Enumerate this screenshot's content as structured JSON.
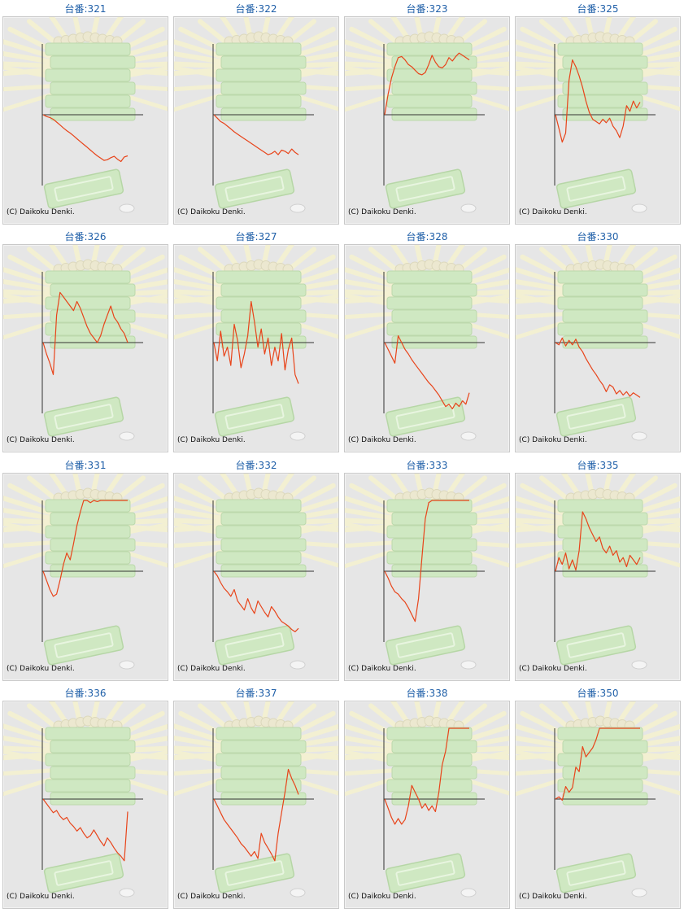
{
  "page": {
    "title_prefix": "台番:",
    "credit": "(C) Daikoku Denki."
  },
  "colors": {
    "title": "#1f5fa8",
    "panel_bg": "#e6e6e6",
    "panel_border": "#c9c9c9",
    "line": "#e8441a",
    "axis": "#333333",
    "watermark_green": "#cfe8c2",
    "watermark_rays": "#f3f0d2"
  },
  "charts": [
    {
      "title": "台番:321",
      "chart_data": {
        "type": "line",
        "x": [
          0,
          4,
          8,
          12,
          16,
          20,
          24,
          28,
          32,
          36,
          40,
          44,
          48,
          52,
          56,
          60,
          64,
          68,
          72,
          76,
          80,
          84,
          88,
          92,
          96,
          100
        ],
        "y": [
          0,
          -0.08,
          -0.12,
          -0.2,
          -0.32,
          -0.45,
          -0.58,
          -0.7,
          -0.8,
          -0.92,
          -1.05,
          -1.18,
          -1.3,
          -1.42,
          -1.55,
          -1.68,
          -1.8,
          -1.9,
          -2,
          -1.97,
          -1.88,
          -1.82,
          -1.95,
          -2.05,
          -1.85,
          -1.8
        ]
      }
    },
    {
      "title": "台番:322",
      "chart_data": {
        "type": "line",
        "x": [
          0,
          4,
          8,
          12,
          16,
          20,
          24,
          28,
          32,
          36,
          40,
          44,
          48,
          52,
          56,
          60,
          64,
          68,
          72,
          76,
          80,
          84,
          88,
          92,
          96,
          100
        ],
        "y": [
          0,
          -0.15,
          -0.3,
          -0.38,
          -0.5,
          -0.62,
          -0.75,
          -0.85,
          -0.95,
          -1.05,
          -1.15,
          -1.25,
          -1.35,
          -1.45,
          -1.55,
          -1.65,
          -1.75,
          -1.7,
          -1.6,
          -1.75,
          -1.55,
          -1.6,
          -1.7,
          -1.5,
          -1.65,
          -1.75
        ]
      }
    },
    {
      "title": "台番:323",
      "chart_data": {
        "type": "line",
        "x": [
          0,
          4,
          8,
          12,
          16,
          20,
          24,
          28,
          32,
          36,
          40,
          44,
          48,
          52,
          56,
          60,
          64,
          68,
          72,
          76,
          80,
          84,
          88,
          92,
          96,
          100
        ],
        "y": [
          0,
          0.9,
          1.6,
          2.1,
          2.5,
          2.55,
          2.4,
          2.2,
          2.1,
          1.95,
          1.8,
          1.75,
          1.85,
          2.2,
          2.6,
          2.3,
          2.1,
          2.05,
          2.2,
          2.5,
          2.35,
          2.55,
          2.7,
          2.6,
          2.5,
          2.4
        ]
      }
    },
    {
      "title": "台番:325",
      "chart_data": {
        "type": "line",
        "x": [
          0,
          4,
          8,
          12,
          16,
          20,
          24,
          28,
          32,
          36,
          40,
          44,
          48,
          52,
          56,
          60,
          64,
          68,
          72,
          76,
          80,
          84,
          88,
          92,
          96,
          100
        ],
        "y": [
          0,
          -0.6,
          -1.2,
          -0.8,
          1.5,
          2.4,
          2.1,
          1.7,
          1.2,
          0.6,
          0.1,
          -0.2,
          -0.3,
          -0.4,
          -0.2,
          -0.35,
          -0.15,
          -0.5,
          -0.7,
          -1,
          -0.5,
          0.4,
          0.15,
          0.6,
          0.3,
          0.55
        ]
      }
    },
    {
      "title": "台番:326",
      "chart_data": {
        "type": "line",
        "x": [
          0,
          4,
          8,
          12,
          16,
          20,
          24,
          28,
          32,
          36,
          40,
          44,
          48,
          52,
          56,
          60,
          64,
          68,
          72,
          76,
          80,
          84,
          88,
          92,
          96,
          100
        ],
        "y": [
          0,
          -0.5,
          -0.9,
          -1.4,
          1.2,
          2.2,
          2,
          1.8,
          1.6,
          1.4,
          1.8,
          1.5,
          1.1,
          0.7,
          0.4,
          0.2,
          0,
          0.3,
          0.8,
          1.2,
          1.6,
          1.1,
          0.9,
          0.6,
          0.4,
          0
        ]
      }
    },
    {
      "title": "台番:327",
      "chart_data": {
        "type": "line",
        "x": [
          0,
          4,
          8,
          12,
          16,
          20,
          24,
          28,
          32,
          36,
          40,
          44,
          48,
          52,
          56,
          60,
          64,
          68,
          72,
          76,
          80,
          84,
          88,
          92,
          96,
          100
        ],
        "y": [
          0,
          -0.8,
          0.5,
          -0.6,
          -0.2,
          -1,
          0.8,
          0.1,
          -1.1,
          -0.5,
          0.3,
          1.8,
          0.9,
          -0.2,
          0.6,
          -0.5,
          0.2,
          -1,
          -0.2,
          -0.8,
          0.4,
          -1.2,
          -0.3,
          0.2,
          -1.4,
          -1.8
        ]
      }
    },
    {
      "title": "台番:328",
      "chart_data": {
        "type": "line",
        "x": [
          0,
          4,
          8,
          12,
          16,
          20,
          24,
          28,
          32,
          36,
          40,
          44,
          48,
          52,
          56,
          60,
          64,
          68,
          72,
          76,
          80,
          84,
          88,
          92,
          96,
          100
        ],
        "y": [
          0,
          -0.3,
          -0.6,
          -0.9,
          0.3,
          0,
          -0.3,
          -0.5,
          -0.75,
          -0.95,
          -1.15,
          -1.35,
          -1.55,
          -1.75,
          -1.9,
          -2.1,
          -2.3,
          -2.55,
          -2.8,
          -2.7,
          -2.9,
          -2.65,
          -2.8,
          -2.55,
          -2.7,
          -2.2
        ]
      }
    },
    {
      "title": "台番:330",
      "chart_data": {
        "type": "line",
        "x": [
          0,
          4,
          8,
          12,
          16,
          20,
          24,
          28,
          32,
          36,
          40,
          44,
          48,
          52,
          56,
          60,
          64,
          68,
          72,
          76,
          80,
          84,
          88,
          92,
          96,
          100
        ],
        "y": [
          0,
          -0.1,
          0.2,
          -0.15,
          0.1,
          -0.1,
          0.15,
          -0.2,
          -0.4,
          -0.7,
          -0.95,
          -1.2,
          -1.4,
          -1.65,
          -1.85,
          -2.15,
          -1.85,
          -1.95,
          -2.25,
          -2.1,
          -2.3,
          -2.15,
          -2.35,
          -2.2,
          -2.3,
          -2.4
        ]
      }
    },
    {
      "title": "台番:331",
      "chart_data": {
        "type": "line",
        "x": [
          0,
          4,
          8,
          12,
          16,
          20,
          24,
          28,
          32,
          36,
          40,
          44,
          48,
          52,
          56,
          60,
          64,
          68,
          72,
          76,
          80,
          84,
          88,
          92,
          96,
          100
        ],
        "y": [
          0,
          -0.4,
          -0.8,
          -1.1,
          -1,
          -0.4,
          0.3,
          0.8,
          0.5,
          1.2,
          2,
          2.6,
          3.1,
          3.1,
          3,
          3.1,
          3.05,
          3.1,
          3.1,
          3.1,
          3.1,
          3.1,
          3.1,
          3.1,
          3.1,
          3.1
        ]
      }
    },
    {
      "title": "台番:332",
      "chart_data": {
        "type": "line",
        "x": [
          0,
          4,
          8,
          12,
          16,
          20,
          24,
          28,
          32,
          36,
          40,
          44,
          48,
          52,
          56,
          60,
          64,
          68,
          72,
          76,
          80,
          84,
          88,
          92,
          96,
          100
        ],
        "y": [
          0,
          -0.2,
          -0.5,
          -0.75,
          -0.9,
          -1.1,
          -0.8,
          -1.3,
          -1.5,
          -1.7,
          -1.2,
          -1.6,
          -1.85,
          -1.3,
          -1.55,
          -1.8,
          -2,
          -1.55,
          -1.75,
          -2,
          -2.2,
          -2.3,
          -2.4,
          -2.55,
          -2.65,
          -2.5
        ]
      }
    },
    {
      "title": "台番:333",
      "chart_data": {
        "type": "line",
        "x": [
          0,
          4,
          8,
          12,
          16,
          20,
          24,
          28,
          32,
          36,
          40,
          44,
          48,
          52,
          56,
          60,
          64,
          68,
          72,
          76,
          80,
          84,
          88,
          92,
          96,
          100
        ],
        "y": [
          0,
          -0.3,
          -0.65,
          -0.9,
          -1,
          -1.2,
          -1.35,
          -1.6,
          -1.9,
          -2.2,
          -1.2,
          0.6,
          2.3,
          3,
          3.1,
          3.1,
          3.1,
          3.1,
          3.1,
          3.1,
          3.1,
          3.1,
          3.1,
          3.1,
          3.1,
          3.1
        ]
      }
    },
    {
      "title": "台番:335",
      "chart_data": {
        "type": "line",
        "x": [
          0,
          4,
          8,
          12,
          16,
          20,
          24,
          28,
          32,
          36,
          40,
          44,
          48,
          52,
          56,
          60,
          64,
          68,
          72,
          76,
          80,
          84,
          88,
          92,
          96,
          100
        ],
        "y": [
          0,
          0.6,
          0.3,
          0.8,
          0.1,
          0.5,
          0.05,
          0.9,
          2.6,
          2.3,
          1.9,
          1.6,
          1.3,
          1.5,
          1,
          0.8,
          1.1,
          0.7,
          0.9,
          0.4,
          0.6,
          0.2,
          0.7,
          0.5,
          0.3,
          0.6
        ]
      }
    },
    {
      "title": "台番:336",
      "chart_data": {
        "type": "line",
        "x": [
          0,
          4,
          8,
          12,
          16,
          20,
          24,
          28,
          32,
          36,
          40,
          44,
          48,
          52,
          56,
          60,
          64,
          68,
          72,
          76,
          80,
          84,
          88,
          92,
          96,
          100
        ],
        "y": [
          0,
          -0.2,
          -0.4,
          -0.6,
          -0.5,
          -0.75,
          -0.9,
          -0.8,
          -1.05,
          -1.2,
          -1.4,
          -1.25,
          -1.5,
          -1.7,
          -1.6,
          -1.35,
          -1.6,
          -1.85,
          -2.05,
          -1.7,
          -1.9,
          -2.15,
          -2.35,
          -2.5,
          -2.7,
          -0.55
        ]
      }
    },
    {
      "title": "台番:337",
      "chart_data": {
        "type": "line",
        "x": [
          0,
          4,
          8,
          12,
          16,
          20,
          24,
          28,
          32,
          36,
          40,
          44,
          48,
          52,
          56,
          60,
          64,
          68,
          72,
          76,
          80,
          84,
          88,
          92,
          96,
          100
        ],
        "y": [
          0,
          -0.3,
          -0.6,
          -0.9,
          -1.1,
          -1.3,
          -1.5,
          -1.7,
          -1.95,
          -2.1,
          -2.3,
          -2.5,
          -2.3,
          -2.6,
          -1.5,
          -1.9,
          -2.15,
          -2.4,
          -2.7,
          -1.5,
          -0.6,
          0.3,
          1.3,
          0.9,
          0.6,
          0.2
        ]
      }
    },
    {
      "title": "台番:338",
      "chart_data": {
        "type": "line",
        "x": [
          0,
          4,
          8,
          12,
          16,
          20,
          24,
          28,
          32,
          36,
          40,
          44,
          48,
          52,
          56,
          60,
          64,
          68,
          72,
          76,
          80,
          84,
          88,
          92,
          96,
          100
        ],
        "y": [
          0,
          -0.4,
          -0.8,
          -1.1,
          -0.85,
          -1.1,
          -0.9,
          -0.3,
          0.6,
          0.3,
          0,
          -0.4,
          -0.2,
          -0.5,
          -0.3,
          -0.55,
          0.3,
          1.5,
          2.1,
          3.1,
          3.1,
          3.1,
          3.1,
          3.1,
          3.1,
          3.1
        ]
      }
    },
    {
      "title": "台番:350",
      "chart_data": {
        "type": "line",
        "x": [
          0,
          4,
          8,
          12,
          16,
          20,
          24,
          28,
          32,
          36,
          40,
          44,
          48,
          52,
          56,
          60,
          64,
          68,
          72,
          76,
          80,
          84,
          88,
          92,
          96,
          100
        ],
        "y": [
          0,
          0.1,
          -0.05,
          0.55,
          0.3,
          0.5,
          1.4,
          1.2,
          2.3,
          1.85,
          2.05,
          2.25,
          2.6,
          3.1,
          3.1,
          3.1,
          3.1,
          3.1,
          3.1,
          3.1,
          3.1,
          3.1,
          3.1,
          3.1,
          3.1,
          3.1
        ]
      }
    }
  ]
}
